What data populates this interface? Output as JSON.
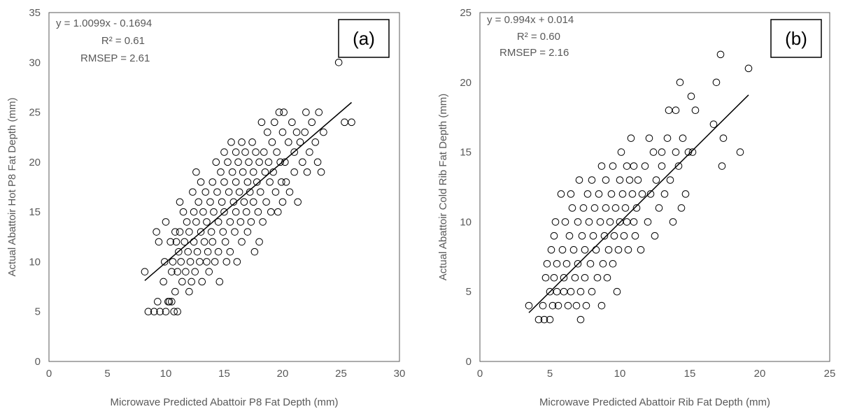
{
  "chart_data": [
    {
      "type": "scatter",
      "panel_label": "(a)",
      "xlabel": "Microwave Predicted Abattoir P8 Fat Depth (mm)",
      "ylabel": "Actual Abattoir Hot P8 Fat Depth (mm)",
      "xlim": [
        0,
        30
      ],
      "ylim": [
        0,
        35
      ],
      "xticks": [
        0,
        5,
        10,
        15,
        20,
        25,
        30
      ],
      "yticks": [
        0,
        5,
        10,
        15,
        20,
        25,
        30,
        35
      ],
      "grid": false,
      "annotations": [
        "y = 1.0099x - 0.1694",
        "R² = 0.61",
        "RMSEP = 2.61"
      ],
      "trendline": {
        "slope": 1.0099,
        "intercept": -0.1694,
        "x_range": [
          8.2,
          25.9
        ]
      },
      "points": [
        [
          8.2,
          9
        ],
        [
          8.5,
          5
        ],
        [
          9,
          5
        ],
        [
          9.2,
          13
        ],
        [
          9.3,
          6
        ],
        [
          9.4,
          12
        ],
        [
          9.5,
          5
        ],
        [
          9.8,
          8
        ],
        [
          9.9,
          10
        ],
        [
          10,
          14
        ],
        [
          10,
          5
        ],
        [
          10.2,
          6
        ],
        [
          10.3,
          6
        ],
        [
          10.4,
          12
        ],
        [
          10.5,
          6
        ],
        [
          10.5,
          9
        ],
        [
          10.6,
          10
        ],
        [
          10.7,
          5
        ],
        [
          10.8,
          13
        ],
        [
          10.8,
          7
        ],
        [
          10.9,
          12
        ],
        [
          11,
          5
        ],
        [
          11,
          9
        ],
        [
          11.1,
          11
        ],
        [
          11.2,
          16
        ],
        [
          11.2,
          13
        ],
        [
          11.3,
          10
        ],
        [
          11.4,
          8
        ],
        [
          11.5,
          15
        ],
        [
          11.6,
          12
        ],
        [
          11.7,
          9
        ],
        [
          11.8,
          14
        ],
        [
          11.9,
          11
        ],
        [
          12,
          7
        ],
        [
          12,
          13
        ],
        [
          12.1,
          10
        ],
        [
          12.2,
          8
        ],
        [
          12.3,
          17
        ],
        [
          12.4,
          15
        ],
        [
          12.4,
          12
        ],
        [
          12.5,
          9
        ],
        [
          12.6,
          19
        ],
        [
          12.6,
          14
        ],
        [
          12.7,
          11
        ],
        [
          12.8,
          16
        ],
        [
          12.9,
          10
        ],
        [
          13,
          18
        ],
        [
          13,
          13
        ],
        [
          13.1,
          8
        ],
        [
          13.2,
          15
        ],
        [
          13.3,
          12
        ],
        [
          13.4,
          17
        ],
        [
          13.5,
          10
        ],
        [
          13.5,
          14
        ],
        [
          13.6,
          11
        ],
        [
          13.7,
          9
        ],
        [
          13.8,
          16
        ],
        [
          13.9,
          13
        ],
        [
          14,
          18
        ],
        [
          14,
          12
        ],
        [
          14.1,
          15
        ],
        [
          14.2,
          10
        ],
        [
          14.3,
          20
        ],
        [
          14.4,
          17
        ],
        [
          14.5,
          14
        ],
        [
          14.5,
          11
        ],
        [
          14.6,
          8
        ],
        [
          14.7,
          19
        ],
        [
          14.8,
          16
        ],
        [
          14.9,
          13
        ],
        [
          15,
          21
        ],
        [
          15,
          18
        ],
        [
          15,
          15
        ],
        [
          15.1,
          12
        ],
        [
          15.2,
          10
        ],
        [
          15.3,
          20
        ],
        [
          15.4,
          17
        ],
        [
          15.5,
          14
        ],
        [
          15.5,
          11
        ],
        [
          15.6,
          22
        ],
        [
          15.7,
          19
        ],
        [
          15.8,
          16
        ],
        [
          15.9,
          13
        ],
        [
          16,
          21
        ],
        [
          16,
          18
        ],
        [
          16,
          15
        ],
        [
          16.1,
          10
        ],
        [
          16.2,
          20
        ],
        [
          16.3,
          17
        ],
        [
          16.4,
          14
        ],
        [
          16.5,
          22
        ],
        [
          16.5,
          12
        ],
        [
          16.6,
          19
        ],
        [
          16.7,
          16
        ],
        [
          16.8,
          21
        ],
        [
          16.9,
          15
        ],
        [
          17,
          18
        ],
        [
          17,
          13
        ],
        [
          17.1,
          20
        ],
        [
          17.2,
          17
        ],
        [
          17.3,
          14
        ],
        [
          17.4,
          22
        ],
        [
          17.5,
          19
        ],
        [
          17.5,
          16
        ],
        [
          17.6,
          11
        ],
        [
          17.7,
          21
        ],
        [
          17.8,
          18
        ],
        [
          17.9,
          15
        ],
        [
          18,
          20
        ],
        [
          18,
          12
        ],
        [
          18.1,
          17
        ],
        [
          18.2,
          24
        ],
        [
          18.3,
          14
        ],
        [
          18.4,
          21
        ],
        [
          18.5,
          19
        ],
        [
          18.6,
          16
        ],
        [
          18.7,
          23
        ],
        [
          18.8,
          20
        ],
        [
          18.9,
          18
        ],
        [
          19,
          15
        ],
        [
          19.1,
          22
        ],
        [
          19.2,
          19
        ],
        [
          19.3,
          24
        ],
        [
          19.4,
          17
        ],
        [
          19.5,
          21
        ],
        [
          19.6,
          15
        ],
        [
          19.7,
          25
        ],
        [
          19.8,
          20
        ],
        [
          19.9,
          18
        ],
        [
          20,
          23
        ],
        [
          20,
          16
        ],
        [
          20.1,
          25
        ],
        [
          20.2,
          20
        ],
        [
          20.3,
          18
        ],
        [
          20.5,
          22
        ],
        [
          20.6,
          17
        ],
        [
          20.8,
          24
        ],
        [
          21,
          21
        ],
        [
          21,
          19
        ],
        [
          21.2,
          23
        ],
        [
          21.3,
          16
        ],
        [
          21.5,
          22
        ],
        [
          21.7,
          20
        ],
        [
          21.9,
          23
        ],
        [
          22,
          25
        ],
        [
          22.1,
          19
        ],
        [
          22.3,
          21
        ],
        [
          22.5,
          24
        ],
        [
          22.8,
          22
        ],
        [
          23,
          20
        ],
        [
          23.1,
          25
        ],
        [
          23.3,
          19
        ],
        [
          23.5,
          23
        ],
        [
          24.8,
          30
        ],
        [
          25.3,
          24
        ],
        [
          25.9,
          24
        ]
      ]
    },
    {
      "type": "scatter",
      "panel_label": "(b)",
      "xlabel": "Microwave Predicted Abattoir Rib Fat Depth (mm)",
      "ylabel": "Actual Abattoir Cold Rib Fat Depth (mm)",
      "xlim": [
        0,
        25
      ],
      "ylim": [
        0,
        25
      ],
      "xticks": [
        0,
        5,
        10,
        15,
        20,
        25
      ],
      "yticks": [
        0,
        5,
        10,
        15,
        20,
        25
      ],
      "grid": false,
      "annotations": [
        "y = 0.994x + 0.014",
        "R² = 0.60",
        "RMSEP = 2.16"
      ],
      "trendline": {
        "slope": 0.994,
        "intercept": 0.014,
        "x_range": [
          3.5,
          19.2
        ]
      },
      "points": [
        [
          3.5,
          4
        ],
        [
          4.2,
          3
        ],
        [
          4.5,
          4
        ],
        [
          4.6,
          3
        ],
        [
          4.7,
          6
        ],
        [
          4.8,
          7
        ],
        [
          5,
          3
        ],
        [
          5,
          5
        ],
        [
          5.1,
          8
        ],
        [
          5.2,
          4
        ],
        [
          5.3,
          9
        ],
        [
          5.3,
          6
        ],
        [
          5.4,
          10
        ],
        [
          5.5,
          7
        ],
        [
          5.5,
          5
        ],
        [
          5.6,
          4
        ],
        [
          5.8,
          12
        ],
        [
          5.9,
          8
        ],
        [
          6,
          6
        ],
        [
          6,
          5
        ],
        [
          6.1,
          10
        ],
        [
          6.2,
          7
        ],
        [
          6.3,
          4
        ],
        [
          6.4,
          9
        ],
        [
          6.5,
          12
        ],
        [
          6.5,
          5
        ],
        [
          6.6,
          11
        ],
        [
          6.7,
          8
        ],
        [
          6.8,
          6
        ],
        [
          6.9,
          4
        ],
        [
          7,
          10
        ],
        [
          7,
          7
        ],
        [
          7.1,
          13
        ],
        [
          7.2,
          5
        ],
        [
          7.2,
          3
        ],
        [
          7.3,
          9
        ],
        [
          7.4,
          11
        ],
        [
          7.5,
          8
        ],
        [
          7.5,
          6
        ],
        [
          7.6,
          4
        ],
        [
          7.7,
          12
        ],
        [
          7.8,
          10
        ],
        [
          7.9,
          7
        ],
        [
          8,
          13
        ],
        [
          8,
          5
        ],
        [
          8.1,
          9
        ],
        [
          8.2,
          11
        ],
        [
          8.3,
          8
        ],
        [
          8.4,
          6
        ],
        [
          8.5,
          12
        ],
        [
          8.6,
          10
        ],
        [
          8.7,
          14
        ],
        [
          8.7,
          4
        ],
        [
          8.8,
          7
        ],
        [
          8.9,
          9
        ],
        [
          9,
          11
        ],
        [
          9,
          13
        ],
        [
          9.1,
          6
        ],
        [
          9.2,
          8
        ],
        [
          9.3,
          10
        ],
        [
          9.4,
          12
        ],
        [
          9.5,
          7
        ],
        [
          9.5,
          14
        ],
        [
          9.6,
          9
        ],
        [
          9.7,
          11
        ],
        [
          9.8,
          5
        ],
        [
          9.9,
          8
        ],
        [
          10,
          10
        ],
        [
          10,
          13
        ],
        [
          10.1,
          15
        ],
        [
          10.2,
          12
        ],
        [
          10.3,
          9
        ],
        [
          10.4,
          11
        ],
        [
          10.5,
          14
        ],
        [
          10.5,
          10
        ],
        [
          10.6,
          8
        ],
        [
          10.7,
          13
        ],
        [
          10.8,
          16
        ],
        [
          10.9,
          12
        ],
        [
          11,
          10
        ],
        [
          11,
          14
        ],
        [
          11.1,
          9
        ],
        [
          11.2,
          11
        ],
        [
          11.3,
          13
        ],
        [
          11.5,
          8
        ],
        [
          11.6,
          12
        ],
        [
          11.8,
          14
        ],
        [
          12,
          10
        ],
        [
          12.1,
          16
        ],
        [
          12.2,
          12
        ],
        [
          12.4,
          15
        ],
        [
          12.5,
          9
        ],
        [
          12.6,
          13
        ],
        [
          12.8,
          11
        ],
        [
          13,
          15
        ],
        [
          13,
          14
        ],
        [
          13.2,
          12
        ],
        [
          13.4,
          16
        ],
        [
          13.5,
          18
        ],
        [
          13.6,
          13
        ],
        [
          13.8,
          10
        ],
        [
          14,
          15
        ],
        [
          14,
          18
        ],
        [
          14.2,
          14
        ],
        [
          14.3,
          20
        ],
        [
          14.4,
          11
        ],
        [
          14.5,
          16
        ],
        [
          14.7,
          12
        ],
        [
          14.9,
          15
        ],
        [
          15.1,
          19
        ],
        [
          15.2,
          15
        ],
        [
          15.4,
          18
        ],
        [
          16.7,
          17
        ],
        [
          16.9,
          20
        ],
        [
          17.2,
          22
        ],
        [
          17.3,
          14
        ],
        [
          17.4,
          16
        ],
        [
          18.6,
          15
        ],
        [
          19.2,
          21
        ]
      ]
    }
  ]
}
